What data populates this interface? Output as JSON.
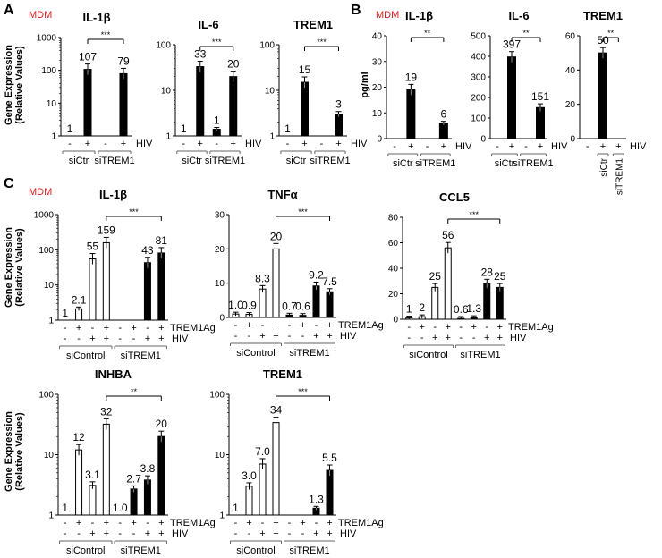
{
  "figure": {
    "panel_letters": [
      "A",
      "B",
      "C"
    ],
    "cell_tag": "MDM",
    "cell_tag_color": "#d7191c",
    "bar_black": "#000000",
    "bar_white": "#ffffff",
    "ylabel_rel": "Gene Expression",
    "ylabel_rel2": "(Relative Values)",
    "ylabel_pg": "pg/ml"
  },
  "chart_data": [
    {
      "id": "A1",
      "panel": "A",
      "type": "bar",
      "title": "IL-1β",
      "scale": "log",
      "ylim": [
        1,
        1000
      ],
      "yticks": [
        "1",
        "10",
        "100",
        "1000"
      ],
      "ylabel": "Gene Expression (Relative Values)",
      "values": [
        1,
        107,
        1,
        79
      ],
      "labels": [
        "1",
        "107",
        "",
        "79"
      ],
      "fills": [
        "black",
        "black",
        "black",
        "black"
      ],
      "row_hiv": [
        "-",
        "+",
        "-",
        "+"
      ],
      "row_label": "HIV",
      "groups": [
        "siCtr",
        "siTREM1"
      ],
      "significance": {
        "text": "***",
        "from": 1,
        "to": 3
      }
    },
    {
      "id": "A2",
      "panel": "A",
      "type": "bar",
      "title": "IL-6",
      "scale": "log",
      "ylim": [
        1,
        100
      ],
      "yticks": [
        "1",
        "10",
        "100"
      ],
      "values": [
        1,
        33,
        1.4,
        20
      ],
      "labels": [
        "1",
        "33",
        "1",
        "20"
      ],
      "fills": [
        "black",
        "black",
        "black",
        "black"
      ],
      "row_hiv": [
        "-",
        "+",
        "-",
        "+"
      ],
      "row_label": "HIV",
      "groups": [
        "siCtr",
        "siTREM1"
      ],
      "significance": {
        "text": "***",
        "from": 1,
        "to": 3
      }
    },
    {
      "id": "A3",
      "panel": "A",
      "type": "bar",
      "title": "TREM1",
      "scale": "log",
      "ylim": [
        1,
        100
      ],
      "yticks": [
        "1",
        "10",
        "100"
      ],
      "values": [
        1,
        15,
        1,
        3
      ],
      "labels": [
        "1",
        "15",
        "",
        "3"
      ],
      "fills": [
        "black",
        "black",
        "black",
        "black"
      ],
      "row_hiv": [
        "-",
        "+",
        "-",
        "+"
      ],
      "row_label": "HIV",
      "groups": [
        "siCtr",
        "siTREM1"
      ],
      "significance": {
        "text": "***",
        "from": 1,
        "to": 3
      }
    },
    {
      "id": "B1",
      "panel": "B",
      "type": "bar",
      "title": "IL-1β",
      "scale": "linear",
      "ylim": [
        0,
        40
      ],
      "yticks": [
        "0",
        "10",
        "20",
        "30",
        "40"
      ],
      "ylabel": "pg/ml",
      "values": [
        0,
        19,
        0,
        6
      ],
      "labels": [
        "",
        "19",
        "",
        "6"
      ],
      "fills": [
        "black",
        "black",
        "black",
        "black"
      ],
      "row_hiv": [
        "-",
        "+",
        "-",
        "+"
      ],
      "row_label": "HIV",
      "groups": [
        "siCtr",
        "siTREM1"
      ],
      "significance": {
        "text": "**",
        "from": 1,
        "to": 3
      }
    },
    {
      "id": "B2",
      "panel": "B",
      "type": "bar",
      "title": "IL-6",
      "scale": "linear",
      "ylim": [
        0,
        500
      ],
      "yticks": [
        "0",
        "100",
        "200",
        "300",
        "400",
        "500"
      ],
      "values": [
        0,
        397,
        0,
        151
      ],
      "labels": [
        "",
        "397",
        "",
        "151"
      ],
      "fills": [
        "black",
        "black",
        "black",
        "black"
      ],
      "row_hiv": [
        "-",
        "+",
        "-",
        "+"
      ],
      "row_label": "HIV",
      "groups": [
        "siCtr",
        "siTREM1"
      ],
      "significance": {
        "text": "**",
        "from": 1,
        "to": 3
      }
    },
    {
      "id": "B3",
      "panel": "B",
      "type": "bar",
      "title": "TREM1",
      "scale": "linear",
      "ylim": [
        0,
        60
      ],
      "yticks": [
        "0",
        "20",
        "40",
        "60"
      ],
      "values": [
        0,
        50,
        0
      ],
      "labels": [
        "",
        "50",
        ""
      ],
      "fills": [
        "black",
        "black",
        "black"
      ],
      "row_hiv": [
        "-",
        "+",
        "+"
      ],
      "row_label": "HIV",
      "groups": [
        "siCtr",
        "siTREM1"
      ],
      "rotated_groups": true,
      "significance": {
        "text": "**",
        "from": 1,
        "to": 2
      }
    },
    {
      "id": "C1",
      "panel": "C",
      "type": "bar",
      "title": "IL-1β",
      "scale": "log",
      "ylim": [
        1,
        1000
      ],
      "yticks": [
        "1",
        "10",
        "100",
        "1000"
      ],
      "ylabel": "Gene Expression (Relative Values)",
      "values": [
        1,
        2.1,
        55,
        159,
        1,
        1,
        43,
        81
      ],
      "labels": [
        "1",
        "2.1",
        "55",
        "159",
        "",
        "",
        "43",
        "81"
      ],
      "fills": [
        "white",
        "white",
        "white",
        "white",
        "black",
        "black",
        "black",
        "black"
      ],
      "row_trem": [
        "-",
        "+",
        "-",
        "+",
        "-",
        "+",
        "-",
        "+"
      ],
      "row_trem_label": "TREM1Ag",
      "row_hiv": [
        "-",
        "-",
        "+",
        "+",
        "-",
        "-",
        "+",
        "+"
      ],
      "row_label": "HIV",
      "groups": [
        "siControl",
        "siTREM1"
      ],
      "significance": {
        "text": "***",
        "from": 3,
        "to": 7
      }
    },
    {
      "id": "C2",
      "panel": "C",
      "type": "bar",
      "title": "TNFα",
      "scale": "linear",
      "ylim": [
        0,
        30
      ],
      "yticks": [
        "0",
        "10",
        "20",
        "30"
      ],
      "values": [
        1.0,
        0.9,
        8.3,
        20,
        0.7,
        0.6,
        9.2,
        7.5
      ],
      "labels": [
        "1.0",
        "0.9",
        "8.3",
        "20",
        "0.7",
        "0.6",
        "9.2",
        "7.5"
      ],
      "fills": [
        "white",
        "white",
        "white",
        "white",
        "black",
        "black",
        "black",
        "black"
      ],
      "row_trem": [
        "-",
        "+",
        "-",
        "+",
        "-",
        "+",
        "-",
        "+"
      ],
      "row_trem_label": "TREM1Ag",
      "row_hiv": [
        "-",
        "-",
        "+",
        "+",
        "-",
        "-",
        "+",
        "+"
      ],
      "row_label": "HIV",
      "groups": [
        "siControl",
        "siTREM1"
      ],
      "significance": {
        "text": "***",
        "from": 3,
        "to": 7
      }
    },
    {
      "id": "C3",
      "panel": "C",
      "type": "bar",
      "title": "CCL5",
      "scale": "linear",
      "ylim": [
        0,
        80
      ],
      "yticks": [
        "0",
        "20",
        "40",
        "60",
        "80"
      ],
      "values": [
        1,
        2,
        25,
        56,
        0.6,
        1.3,
        28,
        25
      ],
      "labels": [
        "1",
        "2",
        "25",
        "56",
        "0.6",
        "1.3",
        "28",
        "25"
      ],
      "fills": [
        "white",
        "white",
        "white",
        "white",
        "black",
        "black",
        "black",
        "black"
      ],
      "row_trem": [
        "-",
        "+",
        "-",
        "+",
        "-",
        "+",
        "-",
        "+"
      ],
      "row_trem_label": "TREM1Ag",
      "row_hiv": [
        "-",
        "-",
        "+",
        "+",
        "-",
        "-",
        "+",
        "+"
      ],
      "row_label": "HIV",
      "groups": [
        "siControl",
        "siTREM1"
      ],
      "significance": {
        "text": "***",
        "from": 3,
        "to": 7
      }
    },
    {
      "id": "C4",
      "panel": "C",
      "type": "bar",
      "title": "INHBA",
      "scale": "log",
      "ylim": [
        1,
        100
      ],
      "yticks": [
        "1",
        "10",
        "100"
      ],
      "ylabel": "Gene Expression (Relative Values)",
      "values": [
        1,
        12,
        3.1,
        32,
        1.0,
        2.7,
        3.8,
        20
      ],
      "labels": [
        "1",
        "12",
        "3.1",
        "32",
        "1.0",
        "2.7",
        "3.8",
        "20"
      ],
      "fills": [
        "white",
        "white",
        "white",
        "white",
        "black",
        "black",
        "black",
        "black"
      ],
      "row_trem": [
        "-",
        "+",
        "-",
        "+",
        "-",
        "+",
        "-",
        "+"
      ],
      "row_trem_label": "TREM1Ag",
      "row_hiv": [
        "-",
        "-",
        "+",
        "+",
        "-",
        "-",
        "+",
        "+"
      ],
      "row_label": "HIV",
      "groups": [
        "siControl",
        "siTREM1"
      ],
      "significance": {
        "text": "**",
        "from": 3,
        "to": 7
      }
    },
    {
      "id": "C5",
      "panel": "C",
      "type": "bar",
      "title": "TREM1",
      "scale": "log",
      "ylim": [
        1,
        100
      ],
      "yticks": [
        "1",
        "10",
        "100"
      ],
      "values": [
        1,
        3.0,
        7.0,
        34,
        1,
        1,
        1.3,
        5.5
      ],
      "labels": [
        "1",
        "3.0",
        "7.0",
        "34",
        "",
        "",
        "1.3",
        "5.5"
      ],
      "fills": [
        "white",
        "white",
        "white",
        "white",
        "black",
        "black",
        "black",
        "black"
      ],
      "row_trem": [
        "-",
        "+",
        "-",
        "+",
        "-",
        "+",
        "-",
        "+"
      ],
      "row_trem_label": "TREM1Ag",
      "row_hiv": [
        "-",
        "-",
        "+",
        "+",
        "-",
        "-",
        "+",
        "+"
      ],
      "row_label": "HIV",
      "groups": [
        "siControl",
        "siTREM1"
      ],
      "significance": {
        "text": "***",
        "from": 3,
        "to": 7
      }
    }
  ]
}
